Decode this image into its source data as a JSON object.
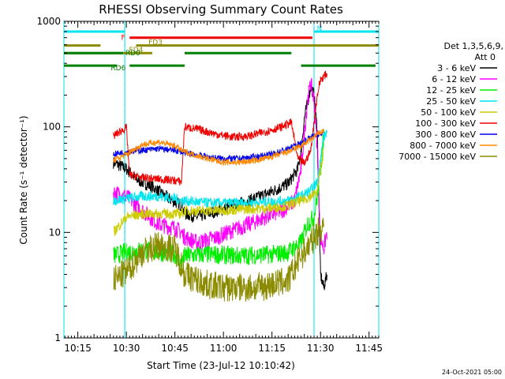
{
  "chart_data": {
    "type": "line",
    "title": "RHESSI Observing Summary Count Rates",
    "xlabel": "Start Time (23-Jul-12 10:10:42)",
    "ylabel": "Count Rate (s⁻¹ detector⁻¹)",
    "ylim": [
      1,
      1000
    ],
    "yscale": "log",
    "xlim": [
      "10:10:42",
      "11:48:00"
    ],
    "x_ticks": [
      "10:15",
      "10:30",
      "10:45",
      "11:00",
      "11:15",
      "11:30",
      "11:45"
    ],
    "y_ticks": [
      "1",
      "10",
      "100",
      "1000"
    ],
    "legend_header": [
      "Det 1,3,5,6,9,",
      "Att 0"
    ],
    "legend_position": "right",
    "footer_date": "24-Oct-2021 05:00",
    "colors": {
      "n_flag": "#00e5ee",
      "f_flag": "#ee0000",
      "fd_flag": "#8b8b00",
      "rd_flag": "#007f00",
      "night_line": "#00e5ee"
    },
    "night_vlines": [
      "10:29:30",
      "11:28:00"
    ],
    "night_bands": [
      [
        "10:10:42",
        "10:29:30"
      ],
      [
        "11:28:00",
        "11:48:00"
      ]
    ],
    "flags": [
      {
        "label": "N",
        "color": "#00e5ee",
        "segments": [
          [
            "10:10:42",
            "10:29:30"
          ],
          [
            "11:28:00",
            "11:48:00"
          ]
        ],
        "y": 800
      },
      {
        "label": "F",
        "color": "#ee0000",
        "segments": [
          [
            "10:31:00",
            "11:27:30"
          ]
        ],
        "y": 700
      },
      {
        "label": "FD3",
        "color": "#8b8b00",
        "segments": [
          [
            "10:10:42",
            "10:22:00"
          ],
          [
            "10:33:00",
            "11:48:00"
          ]
        ],
        "y": 590
      },
      {
        "label": "FD4",
        "color": "#8b8b00",
        "segments": [
          [
            "10:10:42",
            "10:38:00"
          ]
        ],
        "y": 500
      },
      {
        "label": "RD0",
        "color": "#007f00",
        "segments": [
          [
            "10:10:42",
            "10:29:00"
          ],
          [
            "10:48:00",
            "11:21:00"
          ]
        ],
        "y": 500
      },
      {
        "label": "RD6",
        "color": "#007f00",
        "segments": [
          [
            "10:10:42",
            "10:27:00"
          ],
          [
            "10:31:00",
            "10:48:00"
          ],
          [
            "11:24:00",
            "11:47:00"
          ]
        ],
        "y": 380
      }
    ],
    "series": [
      {
        "name": "3 - 6 keV",
        "color": "#000000",
        "noise": 0.06,
        "points": [
          [
            "10:26",
            46
          ],
          [
            "10:30",
            40
          ],
          [
            "10:33",
            32
          ],
          [
            "10:38",
            27
          ],
          [
            "10:43",
            21
          ],
          [
            "10:47",
            18
          ],
          [
            "10:48",
            15
          ],
          [
            "10:52",
            14
          ],
          [
            "10:58",
            16
          ],
          [
            "11:03",
            18
          ],
          [
            "11:08",
            20
          ],
          [
            "11:13",
            23
          ],
          [
            "11:17",
            26
          ],
          [
            "11:20",
            29
          ],
          [
            "11:23",
            40
          ],
          [
            "11:24",
            60
          ],
          [
            "11:25",
            120
          ],
          [
            "11:27",
            240
          ],
          [
            "11:28",
            200
          ],
          [
            "11:29",
            90
          ],
          [
            "11:30",
            4
          ],
          [
            "11:31",
            3
          ],
          [
            "11:32",
            4
          ]
        ]
      },
      {
        "name": "6 - 12 keV",
        "color": "#ff00ff",
        "noise": 0.08,
        "points": [
          [
            "10:26",
            24
          ],
          [
            "10:30",
            22
          ],
          [
            "10:35",
            16
          ],
          [
            "10:40",
            12
          ],
          [
            "10:45",
            11
          ],
          [
            "10:47",
            10
          ],
          [
            "10:48",
            9
          ],
          [
            "10:52",
            8
          ],
          [
            "10:58",
            9
          ],
          [
            "11:03",
            10.5
          ],
          [
            "11:08",
            12
          ],
          [
            "11:13",
            14
          ],
          [
            "11:18",
            16
          ],
          [
            "11:22",
            20
          ],
          [
            "11:24",
            40
          ],
          [
            "11:26",
            180
          ],
          [
            "11:27",
            260
          ],
          [
            "11:28",
            180
          ],
          [
            "11:29",
            60
          ],
          [
            "11:30",
            9
          ],
          [
            "11:31",
            7
          ],
          [
            "11:32",
            10
          ]
        ]
      },
      {
        "name": "12 - 25 keV",
        "color": "#00ee00",
        "noise": 0.09,
        "points": [
          [
            "10:26",
            6
          ],
          [
            "10:30",
            6.5
          ],
          [
            "10:35",
            6.8
          ],
          [
            "10:40",
            6.5
          ],
          [
            "10:45",
            6.2
          ],
          [
            "10:47",
            5
          ],
          [
            "10:48",
            6
          ],
          [
            "10:55",
            6.2
          ],
          [
            "11:05",
            6.0
          ],
          [
            "11:15",
            6.2
          ],
          [
            "11:20",
            6.5
          ],
          [
            "11:24",
            8
          ],
          [
            "11:26",
            12
          ],
          [
            "11:28",
            14
          ],
          [
            "11:29",
            22
          ],
          [
            "11:30",
            40
          ],
          [
            "11:31",
            80
          ]
        ]
      },
      {
        "name": "25 - 50 keV",
        "color": "#00e5ee",
        "noise": 0.05,
        "points": [
          [
            "10:26",
            20
          ],
          [
            "10:30",
            21
          ],
          [
            "10:35",
            22
          ],
          [
            "10:40",
            22
          ],
          [
            "10:45",
            21
          ],
          [
            "10:47",
            20
          ],
          [
            "10:48",
            20
          ],
          [
            "10:55",
            19
          ],
          [
            "11:05",
            19
          ],
          [
            "11:15",
            19.5
          ],
          [
            "11:20",
            20
          ],
          [
            "11:24",
            22
          ],
          [
            "11:27",
            25
          ],
          [
            "11:29",
            30
          ],
          [
            "11:30",
            50
          ],
          [
            "11:31",
            80
          ],
          [
            "11:32",
            90
          ]
        ]
      },
      {
        "name": "50 - 100 keV",
        "color": "#cccc00",
        "noise": 0.05,
        "points": [
          [
            "10:26",
            10
          ],
          [
            "10:30",
            14
          ],
          [
            "10:35",
            15
          ],
          [
            "10:40",
            15
          ],
          [
            "10:45",
            15
          ],
          [
            "10:47",
            15
          ],
          [
            "10:48",
            16
          ],
          [
            "10:55",
            16
          ],
          [
            "11:05",
            16.5
          ],
          [
            "11:15",
            17
          ],
          [
            "11:20",
            18
          ],
          [
            "11:24",
            20
          ],
          [
            "11:27",
            22
          ],
          [
            "11:29",
            24
          ],
          [
            "11:30",
            40
          ],
          [
            "11:31",
            60
          ]
        ]
      },
      {
        "name": "100 - 300 keV",
        "color": "#ee0000",
        "noise": 0.04,
        "points": [
          [
            "10:26",
            82
          ],
          [
            "10:28",
            90
          ],
          [
            "10:30",
            98
          ],
          [
            "10:31",
            35
          ],
          [
            "10:35",
            33
          ],
          [
            "10:40",
            32
          ],
          [
            "10:45",
            31
          ],
          [
            "10:47",
            30
          ],
          [
            "10:48",
            100
          ],
          [
            "10:52",
            95
          ],
          [
            "10:58",
            85
          ],
          [
            "11:03",
            80
          ],
          [
            "11:08",
            82
          ],
          [
            "11:13",
            90
          ],
          [
            "11:18",
            100
          ],
          [
            "11:21",
            110
          ],
          [
            "11:23",
            50
          ],
          [
            "11:25",
            45
          ],
          [
            "11:27",
            60
          ],
          [
            "11:29",
            200
          ],
          [
            "11:30",
            280
          ],
          [
            "11:31",
            300
          ],
          [
            "11:32",
            320
          ]
        ]
      },
      {
        "name": "300 - 800 keV",
        "color": "#0000ee",
        "noise": 0.03,
        "points": [
          [
            "10:26",
            55
          ],
          [
            "10:30",
            58
          ],
          [
            "10:35",
            60
          ],
          [
            "10:40",
            62
          ],
          [
            "10:45",
            60
          ],
          [
            "10:47",
            58
          ],
          [
            "10:48",
            57
          ],
          [
            "10:55",
            52
          ],
          [
            "11:00",
            50
          ],
          [
            "11:05",
            50
          ],
          [
            "11:10",
            52
          ],
          [
            "11:15",
            55
          ],
          [
            "11:20",
            62
          ],
          [
            "11:24",
            70
          ],
          [
            "11:27",
            80
          ],
          [
            "11:29",
            85
          ],
          [
            "11:31",
            88
          ]
        ]
      },
      {
        "name": "800 - 7000 keV",
        "color": "#ff8800",
        "noise": 0.03,
        "points": [
          [
            "10:26",
            48
          ],
          [
            "10:30",
            55
          ],
          [
            "10:35",
            68
          ],
          [
            "10:40",
            72
          ],
          [
            "10:45",
            66
          ],
          [
            "10:47",
            60
          ],
          [
            "10:48",
            58
          ],
          [
            "10:55",
            50
          ],
          [
            "11:00",
            46
          ],
          [
            "11:05",
            46
          ],
          [
            "11:10",
            48
          ],
          [
            "11:15",
            52
          ],
          [
            "11:20",
            58
          ],
          [
            "11:24",
            66
          ],
          [
            "11:27",
            76
          ],
          [
            "11:29",
            85
          ],
          [
            "11:31",
            92
          ]
        ]
      },
      {
        "name": "7000 - 15000 keV",
        "color": "#8b8b00",
        "noise": 0.14,
        "points": [
          [
            "10:26",
            3.5
          ],
          [
            "10:30",
            4.2
          ],
          [
            "10:35",
            6.5
          ],
          [
            "10:40",
            7.5
          ],
          [
            "10:45",
            7.0
          ],
          [
            "10:47",
            5.0
          ],
          [
            "10:48",
            4.0
          ],
          [
            "10:55",
            3.2
          ],
          [
            "11:00",
            3.0
          ],
          [
            "11:05",
            3.0
          ],
          [
            "11:10",
            3.0
          ],
          [
            "11:15",
            3.2
          ],
          [
            "11:20",
            3.5
          ],
          [
            "11:24",
            6
          ],
          [
            "11:27",
            8
          ],
          [
            "11:29",
            10
          ],
          [
            "11:31",
            12
          ]
        ]
      }
    ]
  }
}
